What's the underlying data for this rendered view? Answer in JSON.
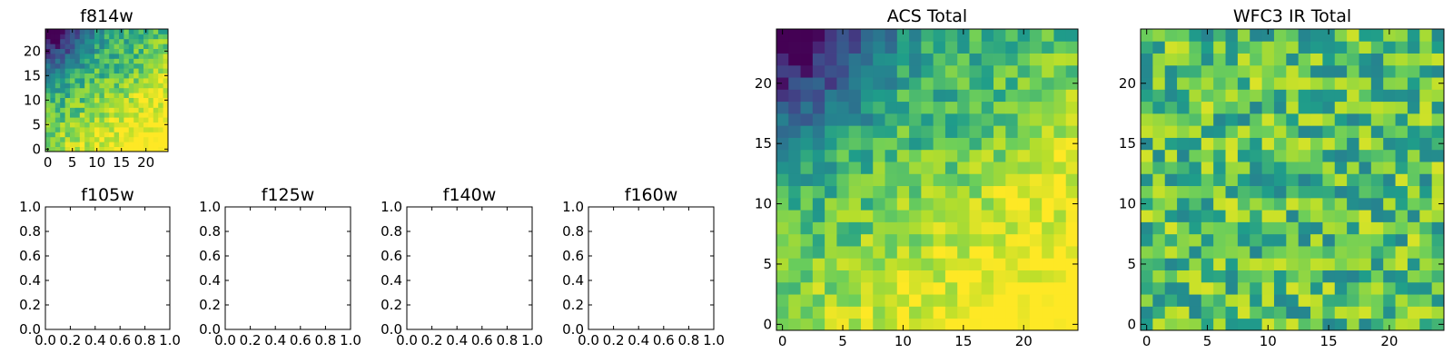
{
  "chart_data": [
    {
      "type": "heatmap",
      "title": "f814w",
      "xlabel": "",
      "ylabel": "",
      "x_ticks": [
        0,
        5,
        10,
        15,
        20
      ],
      "y_ticks": [
        0,
        5,
        10,
        15,
        20
      ],
      "xlim": [
        -0.5,
        24.5
      ],
      "ylim": [
        -0.5,
        24.5
      ],
      "grid_size": [
        25,
        25
      ],
      "colormap": "viridis",
      "description_of_values": "Same field as 'ACS Total': bright (yellow) toward lower-right, dark (purple) toward upper-left",
      "trend": {
        "base": 0.78,
        "slope_x": 0.012,
        "slope_y": -0.016,
        "dark_corner": [
          0,
          24
        ],
        "dark_corner_strength": 0.55,
        "noise": 0.13,
        "seed": 11
      }
    },
    {
      "type": "heatmap",
      "title": "f105w",
      "empty": true,
      "x_ticks": [
        0.0,
        0.2,
        0.4,
        0.6,
        0.8,
        1.0
      ],
      "y_ticks": [
        0.0,
        0.2,
        0.4,
        0.6,
        0.8,
        1.0
      ],
      "xlim": [
        0,
        1
      ],
      "ylim": [
        0,
        1
      ]
    },
    {
      "type": "heatmap",
      "title": "f125w",
      "empty": true,
      "x_ticks": [
        0.0,
        0.2,
        0.4,
        0.6,
        0.8,
        1.0
      ],
      "y_ticks": [
        0.0,
        0.2,
        0.4,
        0.6,
        0.8,
        1.0
      ],
      "xlim": [
        0,
        1
      ],
      "ylim": [
        0,
        1
      ]
    },
    {
      "type": "heatmap",
      "title": "f140w",
      "empty": true,
      "x_ticks": [
        0.0,
        0.2,
        0.4,
        0.6,
        0.8,
        1.0
      ],
      "y_ticks": [
        0.0,
        0.2,
        0.4,
        0.6,
        0.8,
        1.0
      ],
      "xlim": [
        0,
        1
      ],
      "ylim": [
        0,
        1
      ]
    },
    {
      "type": "heatmap",
      "title": "f160w",
      "empty": true,
      "x_ticks": [
        0.0,
        0.2,
        0.4,
        0.6,
        0.8,
        1.0
      ],
      "y_ticks": [
        0.0,
        0.2,
        0.4,
        0.6,
        0.8,
        1.0
      ],
      "xlim": [
        0,
        1
      ],
      "ylim": [
        0,
        1
      ]
    },
    {
      "type": "heatmap",
      "title": "ACS Total",
      "x_ticks": [
        0,
        5,
        10,
        15,
        20
      ],
      "y_ticks": [
        0,
        5,
        10,
        15,
        20
      ],
      "xlim": [
        -0.5,
        24.5
      ],
      "ylim": [
        -0.5,
        24.5
      ],
      "grid_size": [
        25,
        25
      ],
      "colormap": "viridis",
      "trend": {
        "base": 0.78,
        "slope_x": 0.012,
        "slope_y": -0.016,
        "dark_corner": [
          0,
          24
        ],
        "dark_corner_strength": 0.55,
        "noise": 0.13,
        "seed": 11
      }
    },
    {
      "type": "heatmap",
      "title": "WFC3 IR Total",
      "x_ticks": [
        0,
        5,
        10,
        15,
        20
      ],
      "y_ticks": [
        0,
        5,
        10,
        15,
        20
      ],
      "xlim": [
        -0.5,
        24.5
      ],
      "ylim": [
        -0.5,
        24.5
      ],
      "grid_size": [
        25,
        25
      ],
      "colormap": "viridis",
      "trend": {
        "base": 0.72,
        "slope_x": 0.0,
        "slope_y": 0.0,
        "dark_corner": [
          0,
          0
        ],
        "dark_corner_strength": 0.0,
        "noise": 0.22,
        "seed": 29
      }
    }
  ]
}
